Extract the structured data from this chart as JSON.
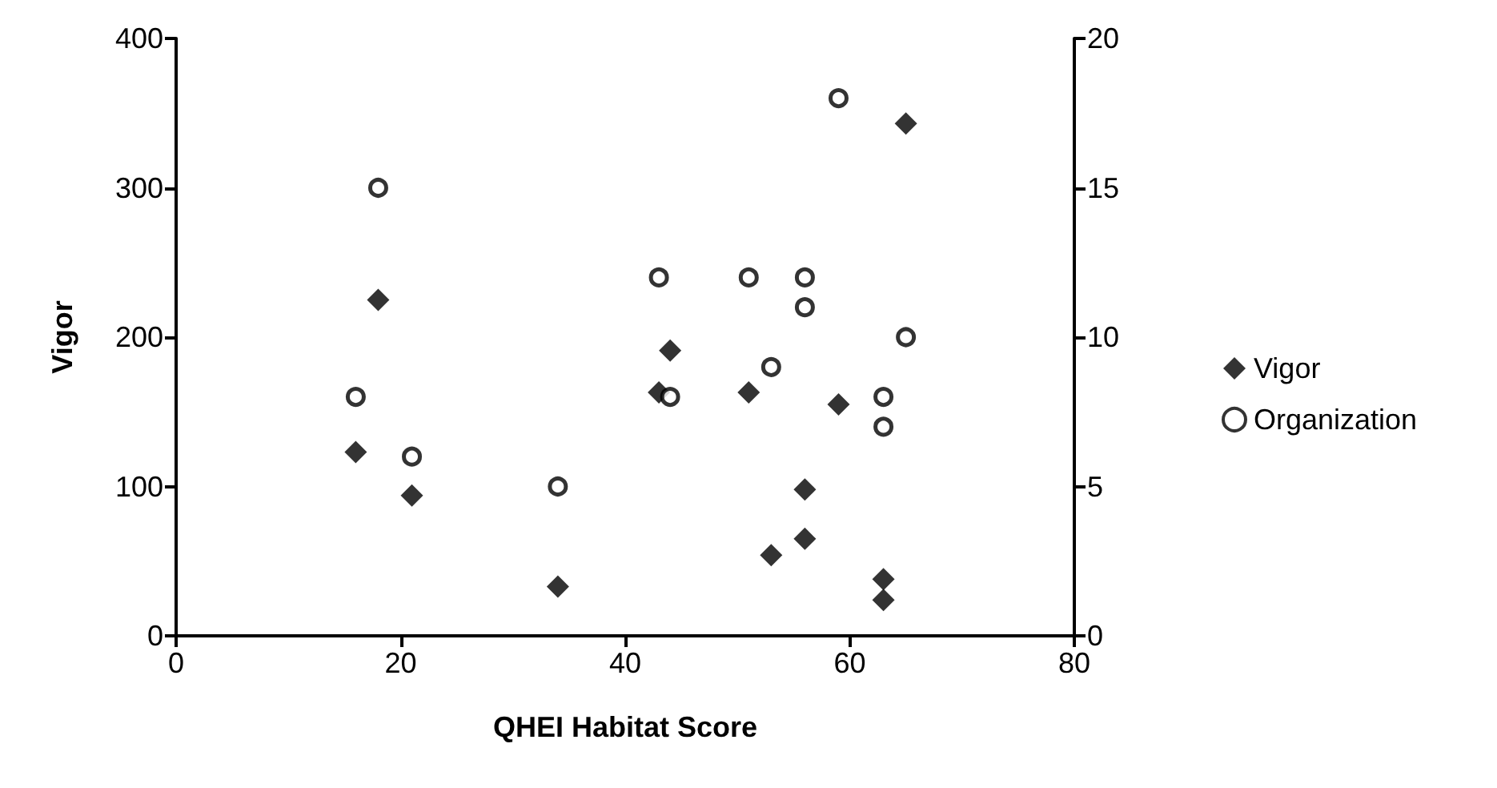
{
  "chart_data": {
    "type": "scatter",
    "xlabel": "QHEI Habitat Score",
    "ylabel": "Vigor",
    "xlim": [
      0,
      80
    ],
    "xticks": [
      0,
      20,
      40,
      60,
      80
    ],
    "ylim": [
      0,
      400
    ],
    "yticks": [
      0,
      100,
      200,
      300,
      400
    ],
    "y2lim": [
      0,
      20
    ],
    "y2ticks": [
      0,
      5,
      10,
      15,
      20
    ],
    "grid": false,
    "legend": "right",
    "series": [
      {
        "name": "Vigor",
        "color": "#000000",
        "marker": "diamond",
        "x": [
          18,
          16,
          21,
          34,
          65,
          44,
          43,
          51,
          59,
          56,
          56,
          53,
          63,
          63
        ],
        "values": [
          225,
          123,
          94,
          33,
          343,
          191,
          163,
          163,
          155,
          98,
          65,
          54,
          38,
          24
        ]
      },
      {
        "name": "Organization",
        "color": "#000000",
        "marker": "circle",
        "axis": "y2",
        "x": [
          18,
          16,
          21,
          34,
          59,
          43,
          51,
          56,
          56,
          65,
          53,
          44,
          63,
          63
        ],
        "values": [
          15,
          8,
          6,
          5,
          18,
          12,
          12,
          12,
          11,
          10,
          9,
          8,
          8,
          7
        ]
      }
    ]
  }
}
